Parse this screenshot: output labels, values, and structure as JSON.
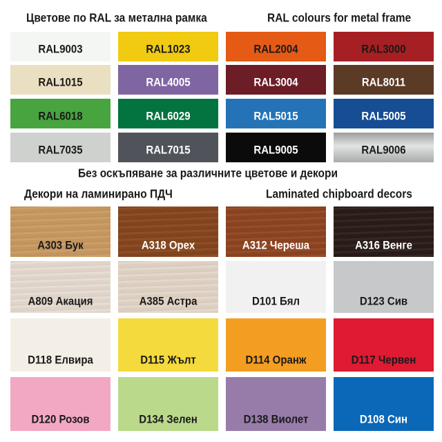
{
  "headers": {
    "ral_bg": "Цветове по RAL за метална рамка",
    "ral_en": "RAL colours for metal frame",
    "note": "Без оскъпяване за различните цветове и декори",
    "decor_bg": "Декори на ламинирано ПДЧ",
    "decor_en": "Laminated chipboard decors"
  },
  "ral_colours": [
    {
      "label": "RAL9003",
      "color": "#f4f6f3",
      "text": "#1a1a1a"
    },
    {
      "label": "RAL1023",
      "color": "#f0cb12",
      "text": "#1a1a1a"
    },
    {
      "label": "RAL2004",
      "color": "#e55a14",
      "text": "#1a1a1a"
    },
    {
      "label": "RAL3000",
      "color": "#a61f22",
      "text": "#1a1a1a"
    },
    {
      "label": "RAL1015",
      "color": "#ebdfc2",
      "text": "#1a1a1a"
    },
    {
      "label": "RAL4005",
      "color": "#8065a3",
      "text": "#ffffff"
    },
    {
      "label": "RAL3004",
      "color": "#6c1d26",
      "text": "#ffffff"
    },
    {
      "label": "RAL8011",
      "color": "#5b3a26",
      "text": "#ffffff"
    },
    {
      "label": "RAL6018",
      "color": "#47a43f",
      "text": "#1a1a1a"
    },
    {
      "label": "RAL6029",
      "color": "#037340",
      "text": "#ffffff"
    },
    {
      "label": "RAL5015",
      "color": "#2573b7",
      "text": "#ffffff"
    },
    {
      "label": "RAL5005",
      "color": "#164d94",
      "text": "#ffffff"
    },
    {
      "label": "RAL7035",
      "color": "#cfd1cf",
      "text": "#1a1a1a"
    },
    {
      "label": "RAL7015",
      "color": "#50545a",
      "text": "#ffffff"
    },
    {
      "label": "RAL9005",
      "color": "#0b0b0c",
      "text": "#ffffff"
    },
    {
      "label": "RAL9006",
      "color": "#b4b5b5",
      "text": "#1a1a1a"
    }
  ],
  "decors": [
    {
      "label": "A303 Бук",
      "color": "#c99a62",
      "text": "#1a1a1a"
    },
    {
      "label": "A318 Орех",
      "color": "#86461d",
      "text": "#ffffff"
    },
    {
      "label": "A312 Череша",
      "color": "#8f4420",
      "text": "#ffffff"
    },
    {
      "label": "A316 Венге",
      "color": "#2a1c18",
      "text": "#ffffff"
    },
    {
      "label": "A809 Акация",
      "color": "#e6dbd1",
      "text": "#1a1a1a"
    },
    {
      "label": "A385 Астра",
      "color": "#e3d6c8",
      "text": "#1a1a1a"
    },
    {
      "label": "D101 Бял",
      "color": "#f1f1f1",
      "text": "#1a1a1a"
    },
    {
      "label": "D123 Сив",
      "color": "#c7c8ca",
      "text": "#1a1a1a"
    },
    {
      "label": "D118 Елвира",
      "color": "#f4efe6",
      "text": "#1a1a1a"
    },
    {
      "label": "D115 Жълт",
      "color": "#f4da3c",
      "text": "#1a1a1a"
    },
    {
      "label": "D114 Оранж",
      "color": "#f49e21",
      "text": "#1a1a1a"
    },
    {
      "label": "D117 Червен",
      "color": "#df1a32",
      "text": "#1a1a1a"
    },
    {
      "label": "D120 Розов",
      "color": "#f2a8c2",
      "text": "#1a1a1a"
    },
    {
      "label": "D134 Зелен",
      "color": "#bad98a",
      "text": "#1a1a1a"
    },
    {
      "label": "D138 Виолет",
      "color": "#977ca9",
      "text": "#1a1a1a"
    },
    {
      "label": "D108 Син",
      "color": "#0b68b8",
      "text": "#ffffff"
    }
  ]
}
